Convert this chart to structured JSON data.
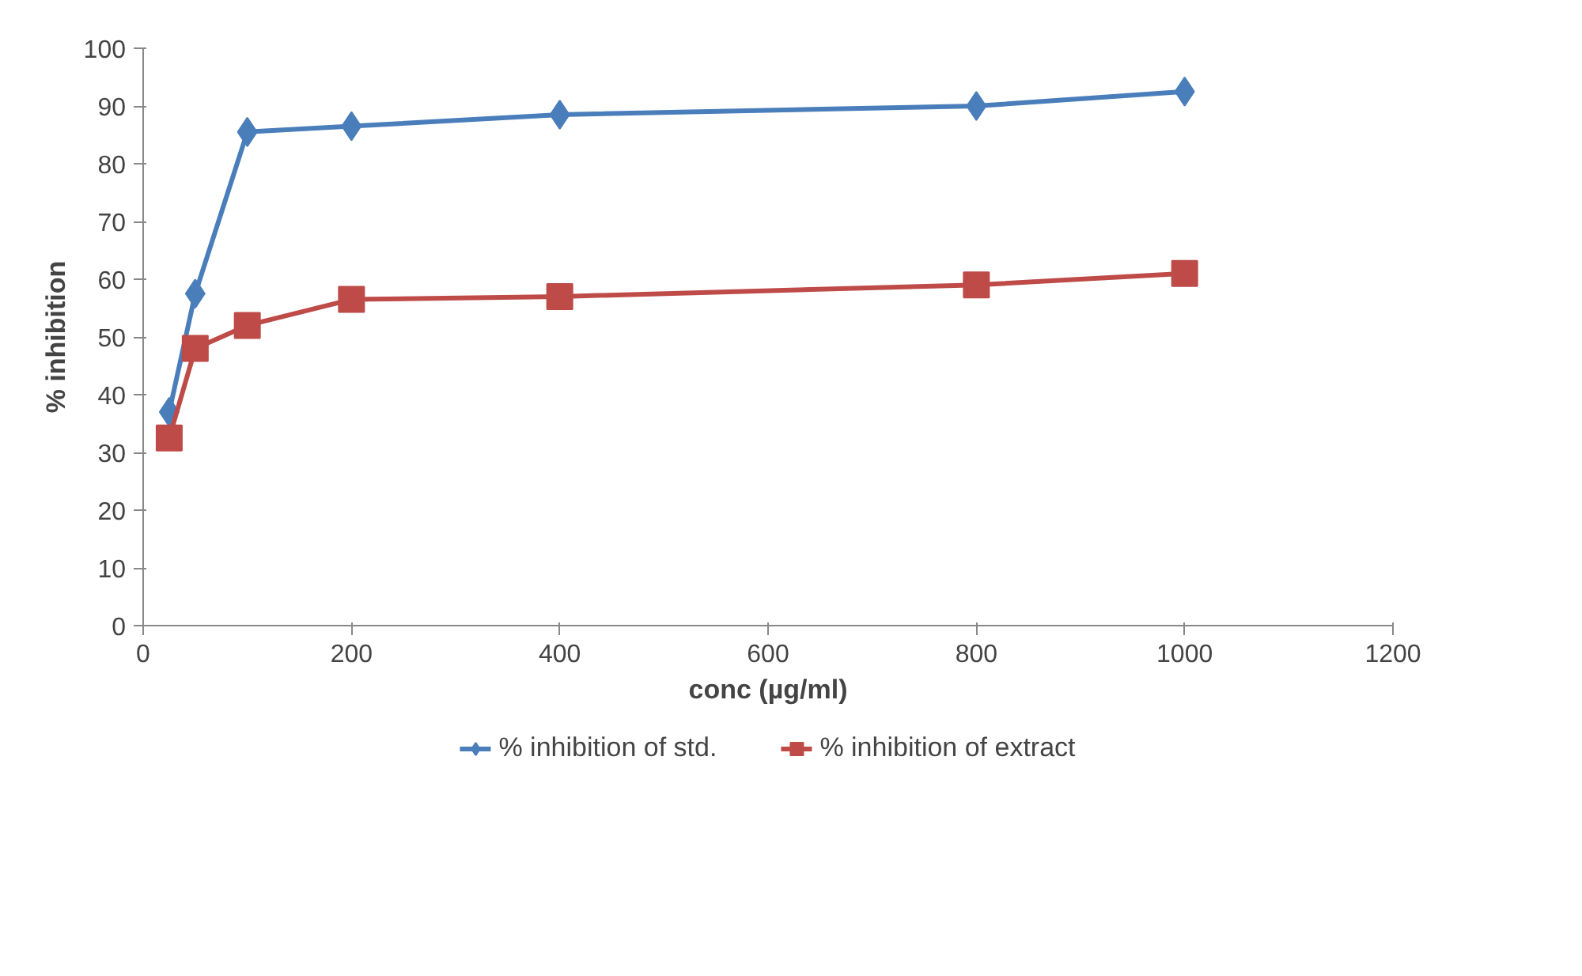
{
  "chart_data": {
    "type": "line",
    "xlabel": "conc (µg/ml)",
    "ylabel": "% inhibition",
    "xlim": [
      0,
      1200
    ],
    "xticks": [
      0,
      200,
      400,
      600,
      800,
      1000,
      1200
    ],
    "ylim": [
      0,
      100
    ],
    "yticks": [
      0,
      10,
      20,
      30,
      40,
      50,
      60,
      70,
      80,
      90,
      100
    ],
    "grid": false,
    "legend": "bottom",
    "series": [
      {
        "name": "% inhibition of std.",
        "color": "#4a7ebb",
        "marker": "diamond",
        "x": [
          25,
          50,
          100,
          200,
          400,
          800,
          1000
        ],
        "values": [
          37,
          57.5,
          85.5,
          86.5,
          88.5,
          90,
          92.5
        ]
      },
      {
        "name": "% inhibition of extract",
        "color": "#be4b48",
        "marker": "square",
        "x": [
          25,
          50,
          100,
          200,
          400,
          800,
          1000
        ],
        "values": [
          32.5,
          48,
          52,
          56.5,
          57,
          59,
          61
        ]
      }
    ]
  }
}
